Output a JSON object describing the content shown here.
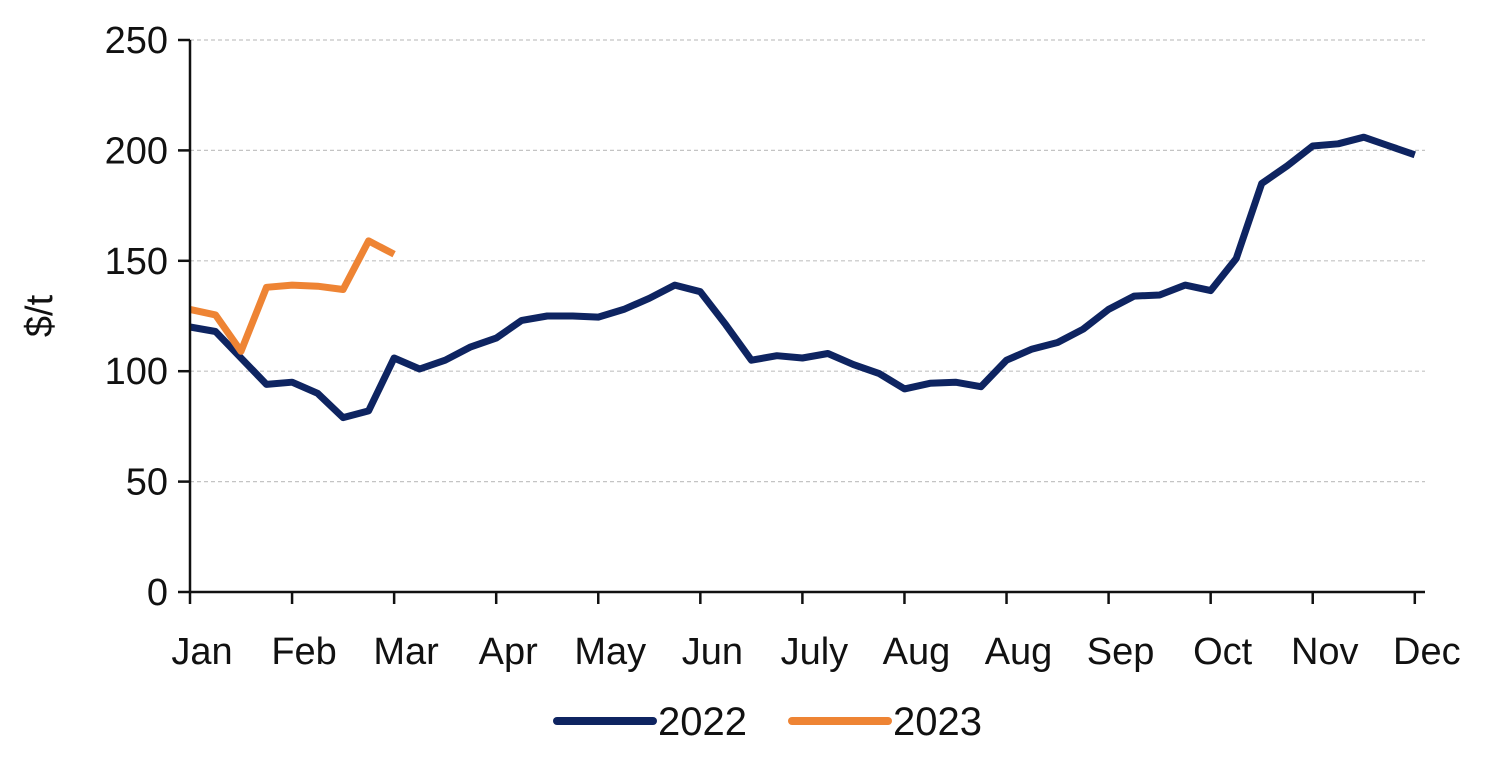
{
  "chart_data": {
    "type": "line",
    "ylabel": "$/t",
    "xlabel": "",
    "ylim": [
      0,
      250
    ],
    "yticks": [
      "0",
      "50",
      "100",
      "150",
      "200",
      "250"
    ],
    "categories": [
      "Jan",
      "Feb",
      "Mar",
      "Apr",
      "May",
      "Jun",
      "July",
      "Aug",
      "Aug",
      "Sep",
      "Oct",
      "Nov",
      "Dec"
    ],
    "grid": "horizontal dashed",
    "legend_position": "bottom",
    "series": [
      {
        "name": "2022",
        "color": "#0e2461",
        "x": [
          0,
          0.5,
          1,
          1.5,
          2,
          2.5,
          3,
          3.5,
          4,
          4.5,
          5,
          5.5,
          6,
          6.5,
          7,
          7.5,
          8,
          8.5,
          9,
          9.5,
          10,
          10.5,
          11,
          11.5,
          12,
          12.5,
          13,
          13.5,
          14,
          14.5,
          15,
          15.5,
          16,
          16.5,
          17,
          17.5,
          18,
          18.5,
          19,
          19.5,
          20,
          20.5,
          21,
          21.5,
          22,
          22.5,
          23,
          23.5,
          24
        ],
        "values": [
          120,
          118,
          106,
          94,
          95,
          90,
          79,
          82,
          106,
          101,
          105,
          111,
          115,
          123,
          125,
          125,
          124.5,
          128,
          133,
          139,
          136,
          121,
          105,
          107,
          106,
          108,
          103,
          99,
          92,
          94.5,
          95,
          93,
          105,
          110,
          113,
          119,
          128,
          134,
          134.5,
          139,
          136.5,
          151,
          185,
          193,
          202,
          203,
          206,
          202,
          198
        ]
      },
      {
        "name": "2023",
        "color": "#ee8434",
        "x": [
          0,
          0.5,
          1,
          1.5,
          2,
          2.5,
          3,
          3.5,
          4
        ],
        "values": [
          128,
          125.5,
          109,
          138,
          139,
          138.5,
          137,
          159,
          153
        ]
      }
    ]
  }
}
